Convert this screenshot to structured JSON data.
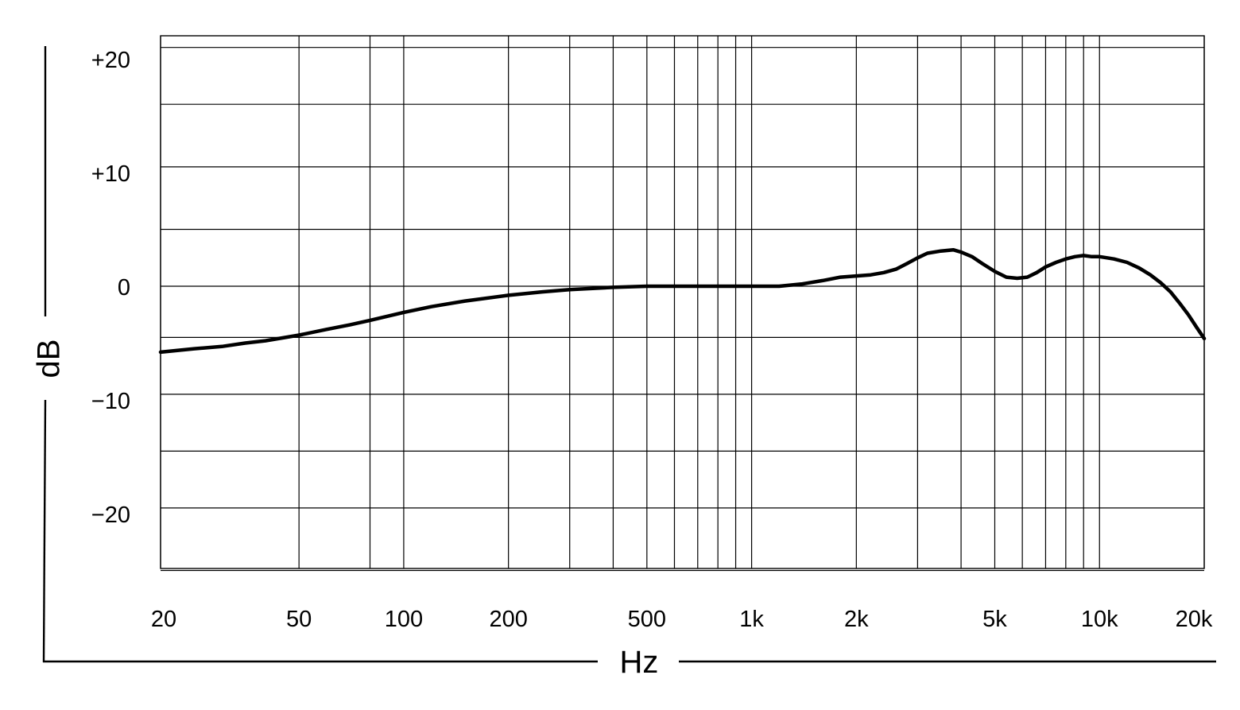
{
  "chart_data": {
    "type": "line",
    "xlabel": "Hz",
    "ylabel": "dB",
    "x_scale": "log",
    "xlim": [
      20,
      20000
    ],
    "ylim": [
      -25,
      21
    ],
    "grid": true,
    "x_gridlines": [
      20,
      50,
      80,
      100,
      200,
      300,
      400,
      500,
      600,
      700,
      800,
      900,
      1000,
      2000,
      3000,
      4000,
      5000,
      6000,
      7000,
      8000,
      9000,
      10000,
      20000
    ],
    "y_gridlines": [
      21,
      16,
      10.5,
      5,
      0,
      -4.5,
      -9.5,
      -14.5,
      -19.5,
      -25
    ],
    "x_ticks": [
      {
        "value": 20,
        "label": "20"
      },
      {
        "value": 50,
        "label": "50"
      },
      {
        "value": 100,
        "label": "100"
      },
      {
        "value": 200,
        "label": "200"
      },
      {
        "value": 500,
        "label": "500"
      },
      {
        "value": 1000,
        "label": "1k"
      },
      {
        "value": 2000,
        "label": "2k"
      },
      {
        "value": 5000,
        "label": "5k"
      },
      {
        "value": 10000,
        "label": "10k"
      },
      {
        "value": 20000,
        "label": "20k"
      }
    ],
    "y_ticks": [
      {
        "value": 20,
        "label": "+20"
      },
      {
        "value": 10,
        "label": "+10"
      },
      {
        "value": 0,
        "label": "0"
      },
      {
        "value": -10,
        "label": "−10"
      },
      {
        "value": -20,
        "label": "−20"
      }
    ],
    "series": [
      {
        "x": [
          20,
          25,
          30,
          35,
          40,
          50,
          60,
          70,
          80,
          100,
          120,
          150,
          200,
          250,
          300,
          400,
          500,
          600,
          700,
          800,
          900,
          1000,
          1200,
          1400,
          1600,
          1800,
          2000,
          2200,
          2400,
          2600,
          2800,
          3000,
          3200,
          3500,
          3800,
          4000,
          4300,
          4600,
          5000,
          5400,
          5800,
          6200,
          6600,
          7000,
          7500,
          8000,
          8500,
          9000,
          9500,
          10000,
          11000,
          12000,
          13000,
          14000,
          15000,
          16000,
          17000,
          18000,
          19000,
          20000
        ],
        "y": [
          -5.8,
          -5.5,
          -5.3,
          -5.0,
          -4.8,
          -4.3,
          -3.8,
          -3.4,
          -3.0,
          -2.3,
          -1.8,
          -1.3,
          -0.8,
          -0.5,
          -0.3,
          -0.1,
          0.0,
          0.0,
          0.0,
          0.0,
          0.0,
          0.0,
          0.0,
          0.2,
          0.5,
          0.8,
          0.9,
          1.0,
          1.2,
          1.5,
          2.0,
          2.5,
          2.9,
          3.1,
          3.2,
          3.0,
          2.6,
          2.0,
          1.3,
          0.8,
          0.7,
          0.8,
          1.2,
          1.7,
          2.1,
          2.4,
          2.6,
          2.7,
          2.6,
          2.6,
          2.4,
          2.1,
          1.6,
          1.0,
          0.3,
          -0.5,
          -1.5,
          -2.5,
          -3.6,
          -4.6
        ]
      }
    ]
  }
}
